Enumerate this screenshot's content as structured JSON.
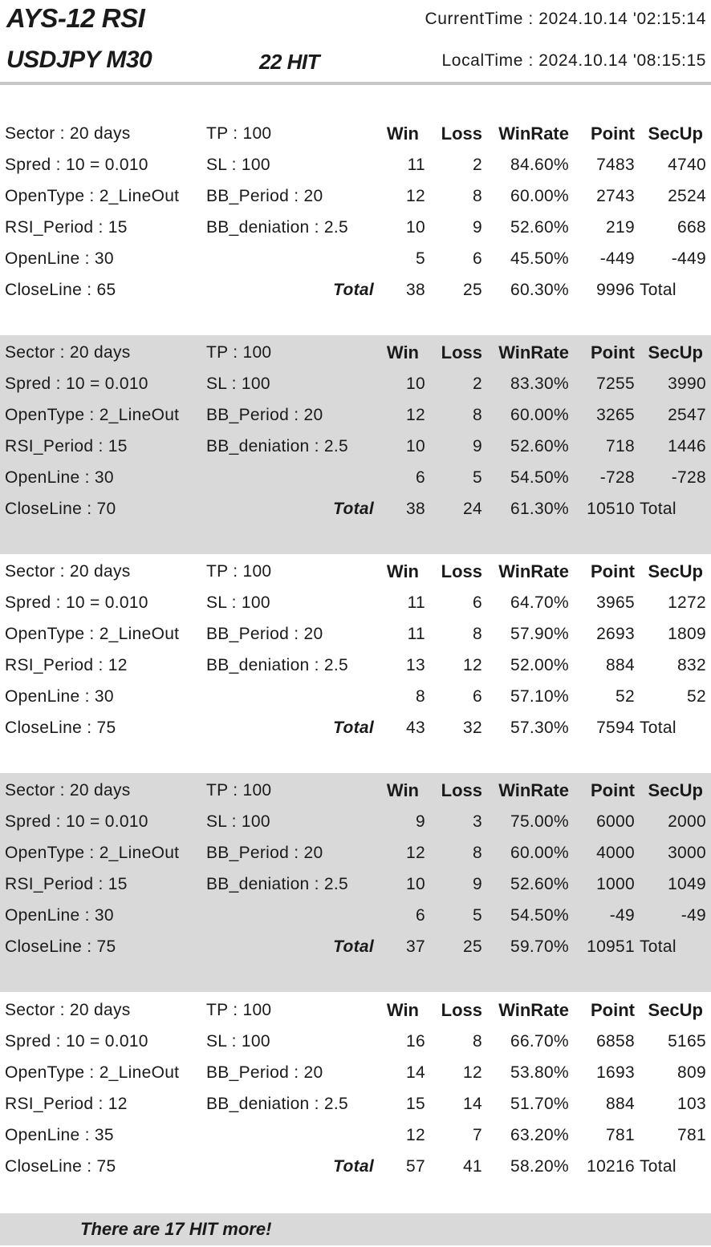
{
  "header": {
    "title": "AYS-12 RSI",
    "pair": "USDJPY M30",
    "hits": "22 HIT",
    "current_time": "CurrentTime : 2024.10.14  '02:15:14",
    "local_time": "LocalTime : 2024.10.14  '08:15:15"
  },
  "columns": {
    "win": "Win",
    "loss": "Loss",
    "rate": "WinRate",
    "point": "Point",
    "secup": "SecUp"
  },
  "blocks": [
    {
      "labels": [
        [
          "Sector : 20 days",
          "TP : 100"
        ],
        [
          "Spred : 10 = 0.010",
          "SL : 100"
        ],
        [
          "OpenType : 2_LineOut",
          "BB_Period : 20"
        ],
        [
          "RSI_Period : 15",
          "BB_deniation : 2.5"
        ],
        [
          "OpenLine : 30",
          ""
        ],
        [
          "CloseLine : 65",
          ""
        ]
      ],
      "rows": [
        [
          "11",
          "2",
          "84.60%",
          "7483",
          "4740"
        ],
        [
          "12",
          "8",
          "60.00%",
          "2743",
          "2524"
        ],
        [
          "10",
          "9",
          "52.60%",
          "219",
          "668"
        ],
        [
          "5",
          "6",
          "45.50%",
          "-449",
          "-449"
        ]
      ],
      "total": {
        "label": "Total",
        "win": "38",
        "loss": "25",
        "rate": "60.30%",
        "point": "9996",
        "word": "Total"
      }
    },
    {
      "labels": [
        [
          "Sector : 20 days",
          "TP : 100"
        ],
        [
          "Spred : 10 = 0.010",
          "SL : 100"
        ],
        [
          "OpenType : 2_LineOut",
          "BB_Period : 20"
        ],
        [
          "RSI_Period : 15",
          "BB_deniation : 2.5"
        ],
        [
          "OpenLine : 30",
          ""
        ],
        [
          "CloseLine : 70",
          ""
        ]
      ],
      "rows": [
        [
          "10",
          "2",
          "83.30%",
          "7255",
          "3990"
        ],
        [
          "12",
          "8",
          "60.00%",
          "3265",
          "2547"
        ],
        [
          "10",
          "9",
          "52.60%",
          "718",
          "1446"
        ],
        [
          "6",
          "5",
          "54.50%",
          "-728",
          "-728"
        ]
      ],
      "total": {
        "label": "Total",
        "win": "38",
        "loss": "24",
        "rate": "61.30%",
        "point": "10510",
        "word": "Total"
      }
    },
    {
      "labels": [
        [
          "Sector : 20 days",
          "TP : 100"
        ],
        [
          "Spred : 10 = 0.010",
          "SL : 100"
        ],
        [
          "OpenType : 2_LineOut",
          "BB_Period : 20"
        ],
        [
          "RSI_Period : 12",
          "BB_deniation : 2.5"
        ],
        [
          "OpenLine : 30",
          ""
        ],
        [
          "CloseLine : 75",
          ""
        ]
      ],
      "rows": [
        [
          "11",
          "6",
          "64.70%",
          "3965",
          "1272"
        ],
        [
          "11",
          "8",
          "57.90%",
          "2693",
          "1809"
        ],
        [
          "13",
          "12",
          "52.00%",
          "884",
          "832"
        ],
        [
          "8",
          "6",
          "57.10%",
          "52",
          "52"
        ]
      ],
      "total": {
        "label": "Total",
        "win": "43",
        "loss": "32",
        "rate": "57.30%",
        "point": "7594",
        "word": "Total"
      }
    },
    {
      "labels": [
        [
          "Sector : 20 days",
          "TP : 100"
        ],
        [
          "Spred : 10 = 0.010",
          "SL : 100"
        ],
        [
          "OpenType : 2_LineOut",
          "BB_Period : 20"
        ],
        [
          "RSI_Period : 15",
          "BB_deniation : 2.5"
        ],
        [
          "OpenLine : 30",
          ""
        ],
        [
          "CloseLine : 75",
          ""
        ]
      ],
      "rows": [
        [
          "9",
          "3",
          "75.00%",
          "6000",
          "2000"
        ],
        [
          "12",
          "8",
          "60.00%",
          "4000",
          "3000"
        ],
        [
          "10",
          "9",
          "52.60%",
          "1000",
          "1049"
        ],
        [
          "6",
          "5",
          "54.50%",
          "-49",
          "-49"
        ]
      ],
      "total": {
        "label": "Total",
        "win": "37",
        "loss": "25",
        "rate": "59.70%",
        "point": "10951",
        "word": "Total"
      }
    },
    {
      "labels": [
        [
          "Sector : 20 days",
          "TP : 100"
        ],
        [
          "Spred : 10 = 0.010",
          "SL : 100"
        ],
        [
          "OpenType : 2_LineOut",
          "BB_Period : 20"
        ],
        [
          "RSI_Period : 12",
          "BB_deniation : 2.5"
        ],
        [
          "OpenLine : 35",
          ""
        ],
        [
          "CloseLine : 75",
          ""
        ]
      ],
      "rows": [
        [
          "16",
          "8",
          "66.70%",
          "6858",
          "5165"
        ],
        [
          "14",
          "12",
          "53.80%",
          "1693",
          "809"
        ],
        [
          "15",
          "14",
          "51.70%",
          "884",
          "103"
        ],
        [
          "12",
          "7",
          "63.20%",
          "781",
          "781"
        ]
      ],
      "total": {
        "label": "Total",
        "win": "57",
        "loss": "41",
        "rate": "58.20%",
        "point": "10216",
        "word": "Total"
      }
    }
  ],
  "footer": {
    "text": "There are 17  HIT more!"
  }
}
